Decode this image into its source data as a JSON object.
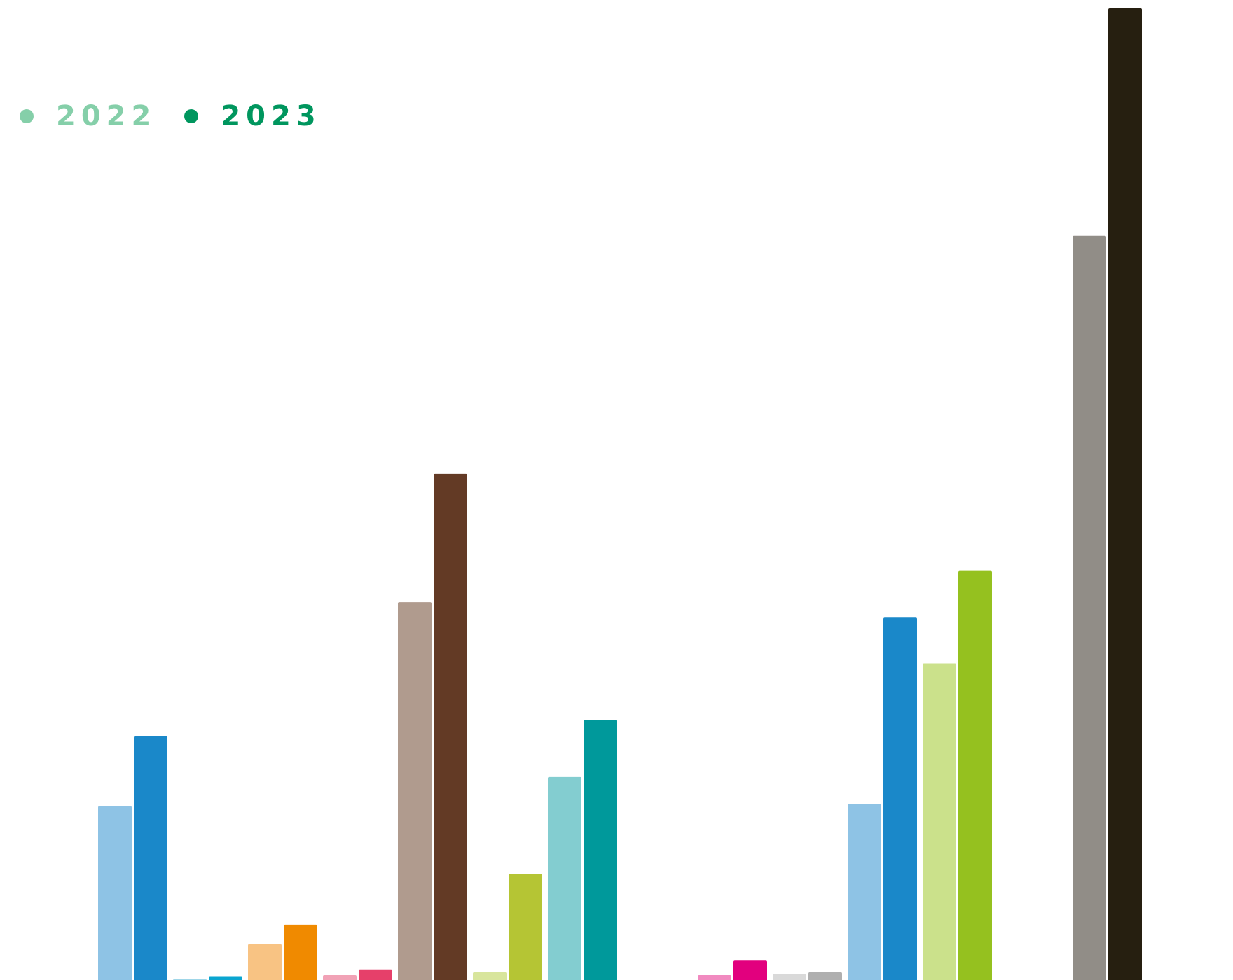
{
  "chart_data": {
    "type": "bar",
    "title": "",
    "xlabel": "",
    "ylabel": "",
    "ylim": [
      0,
      100
    ],
    "legend_position": "top-left",
    "grid": false,
    "series": [
      {
        "name": "2022",
        "legend_color": "#85cfa9"
      },
      {
        "name": "2023",
        "legend_color": "#00965e"
      }
    ],
    "groups": [
      {
        "values": [
          17.9,
          25.1
        ],
        "colors": [
          "#8ec3e5",
          "#1a88c9"
        ]
      },
      {
        "values": [
          0.1,
          0.4
        ],
        "colors": [
          "#9fd6e8",
          "#0aa5d0"
        ]
      },
      {
        "values": [
          3.7,
          5.7
        ],
        "colors": [
          "#f8c383",
          "#f08a00"
        ]
      },
      {
        "values": [
          0.5,
          1.1
        ],
        "colors": [
          "#f1a2b6",
          "#e6406a"
        ]
      },
      {
        "values": [
          38.9,
          52.1
        ],
        "colors": [
          "#b09b8e",
          "#633a25"
        ]
      },
      {
        "values": [
          0.8,
          10.9
        ],
        "colors": [
          "#d8e59c",
          "#b5c534"
        ]
      },
      {
        "values": [
          20.9,
          26.8
        ],
        "colors": [
          "#83cdd0",
          "#00999b"
        ]
      },
      {
        "values": [
          null,
          null
        ],
        "colors": [
          "#ffffff",
          "#ffffff"
        ]
      },
      {
        "values": [
          0.5,
          2.0
        ],
        "colors": [
          "#f18ac0",
          "#e2007e"
        ]
      },
      {
        "values": [
          0.6,
          0.8
        ],
        "colors": [
          "#d9d9d9",
          "#afafaf"
        ]
      },
      {
        "values": [
          18.1,
          37.3
        ],
        "colors": [
          "#8ec3e5",
          "#1a88c9"
        ]
      },
      {
        "values": [
          32.6,
          42.1
        ],
        "colors": [
          "#cbe18b",
          "#95c11f"
        ]
      },
      {
        "values": [
          null,
          null
        ],
        "colors": [
          "#ffffff",
          "#ffffff"
        ]
      },
      {
        "values": [
          76.6,
          100
        ],
        "colors": [
          "#918d87",
          "#261f10"
        ]
      }
    ]
  }
}
